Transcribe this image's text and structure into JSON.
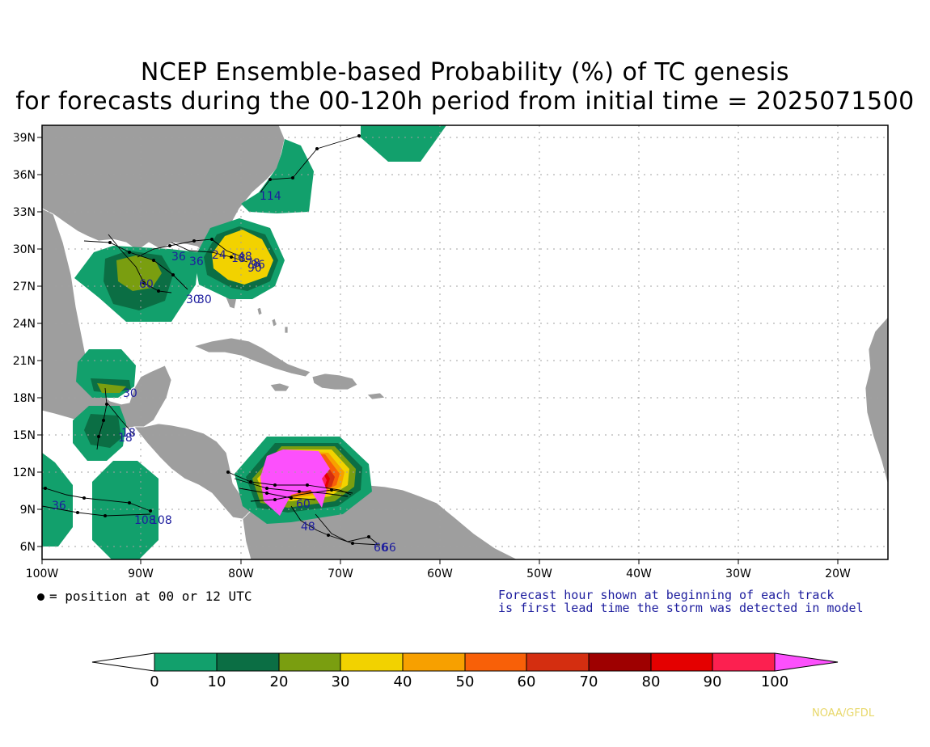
{
  "title": {
    "line1": "NCEP Ensemble-based Probability (%) of TC genesis",
    "line2": "for forecasts during the 00-120h period from initial time = 2025071500"
  },
  "axes": {
    "lat_labels": [
      "39N",
      "36N",
      "33N",
      "30N",
      "27N",
      "24N",
      "21N",
      "18N",
      "15N",
      "12N",
      "9N",
      "6N"
    ],
    "lon_labels": [
      "100W",
      "90W",
      "80W",
      "70W",
      "60W",
      "50W",
      "40W",
      "30W",
      "20W"
    ]
  },
  "legend": {
    "position_note": "= position at 00 or 12 UTC",
    "forecast_note_1": "Forecast hour shown at beginning of each track",
    "forecast_note_2": "is first lead time the storm was detected in model",
    "colorbar_ticks": [
      "0",
      "10",
      "20",
      "30",
      "40",
      "50",
      "60",
      "70",
      "80",
      "90",
      "100"
    ],
    "colors": [
      "#ffffff",
      "#12a06c",
      "#0b6e44",
      "#7a9e10",
      "#f2d200",
      "#f7a000",
      "#f86008",
      "#d42e10",
      "#9e0000",
      "#e40000",
      "#fc2050",
      "#fc50fc"
    ]
  },
  "track_labels": {
    "gulf": [
      "36",
      "36",
      "60",
      "30",
      "30"
    ],
    "florida": [
      "24",
      "18",
      "78",
      "90",
      "48",
      "96"
    ],
    "northeast": [
      "114"
    ],
    "yucatan": [
      "30",
      "18",
      "18"
    ],
    "pacific": [
      "36",
      "108",
      "108"
    ],
    "caribbean": [
      "48",
      "60",
      "66",
      "66"
    ]
  },
  "credit": "NOAA/GFDL"
}
